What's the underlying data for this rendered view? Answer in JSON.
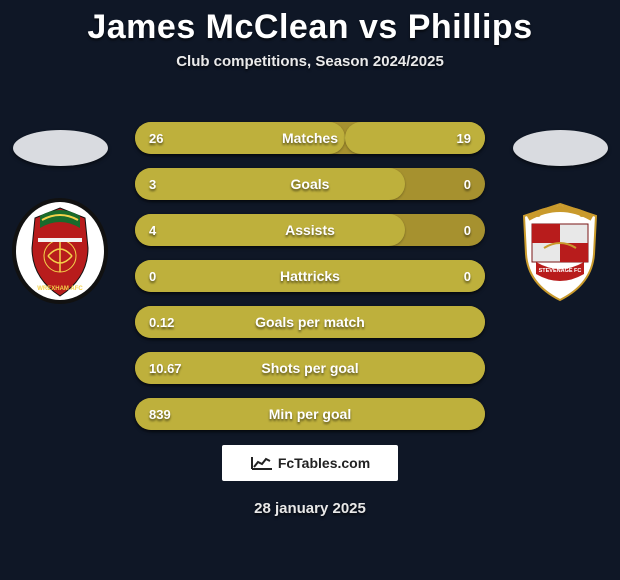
{
  "title": "James McClean vs Phillips",
  "subtitle": "Club competitions, Season 2024/2025",
  "date": "28 january 2025",
  "watermark_text": "FcTables.com",
  "colors": {
    "page_bg": "#0f1726",
    "bar_outer": "#a6912f",
    "bar_inner": "#beb03c"
  },
  "left_player": {
    "crest_name": "wrexham"
  },
  "right_player": {
    "crest_name": "stevenage"
  },
  "rows": [
    {
      "label": "Matches",
      "left": "26",
      "right": "19",
      "left_pct": 60,
      "right_pct": 40,
      "mode": "split"
    },
    {
      "label": "Goals",
      "left": "3",
      "right": "0",
      "left_pct": 77,
      "right_pct": 0,
      "mode": "split"
    },
    {
      "label": "Assists",
      "left": "4",
      "right": "0",
      "left_pct": 77,
      "right_pct": 0,
      "mode": "split"
    },
    {
      "label": "Hattricks",
      "left": "0",
      "right": "0",
      "left_pct": 100,
      "right_pct": 0,
      "mode": "full"
    },
    {
      "label": "Goals per match",
      "left": "0.12",
      "right": "",
      "left_pct": 100,
      "right_pct": 0,
      "mode": "full"
    },
    {
      "label": "Shots per goal",
      "left": "10.67",
      "right": "",
      "left_pct": 100,
      "right_pct": 0,
      "mode": "full"
    },
    {
      "label": "Min per goal",
      "left": "839",
      "right": "",
      "left_pct": 100,
      "right_pct": 0,
      "mode": "full"
    }
  ]
}
